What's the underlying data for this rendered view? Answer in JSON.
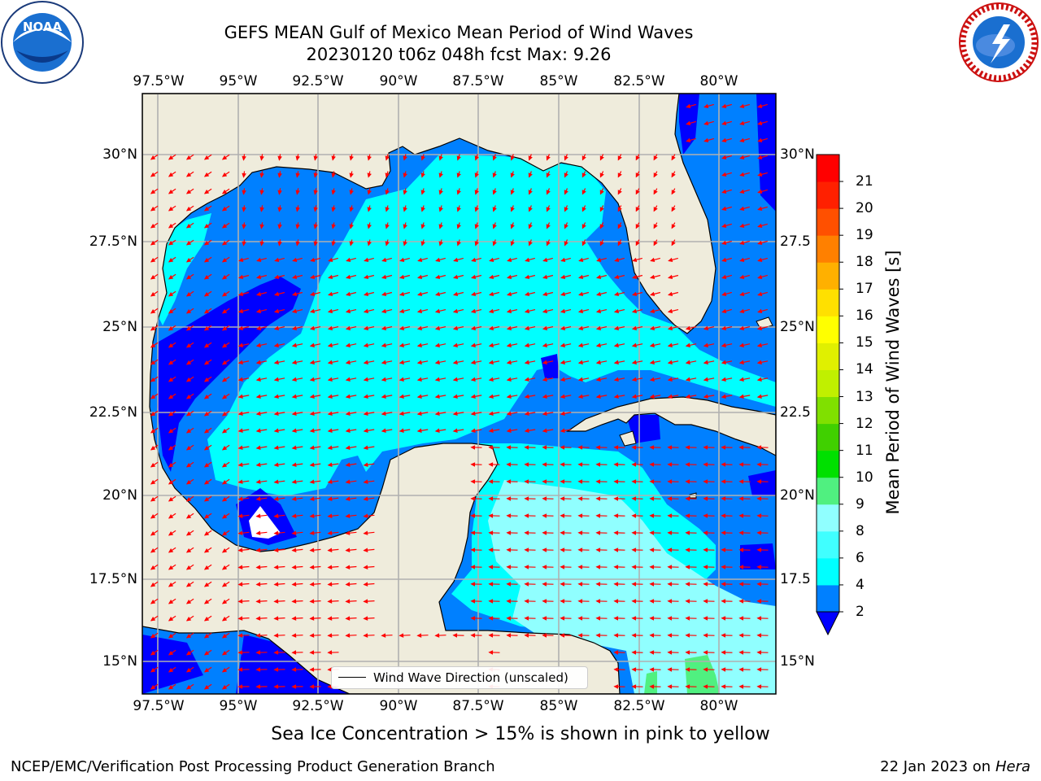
{
  "title": {
    "line1": "GEFS MEAN Gulf of Mexico Mean Period of Wind Waves",
    "line2": "20230120 t06z 048h fcst   Max: 9.26"
  },
  "lon_ticks": [
    "97.5°W",
    "95°W",
    "92.5°W",
    "90°W",
    "87.5°W",
    "85°W",
    "82.5°W",
    "80°W"
  ],
  "lat_ticks_left": [
    "30°N",
    "27.5°N",
    "25°N",
    "22.5°N",
    "20°N",
    "17.5°N",
    "15°N"
  ],
  "lat_ticks_right": [
    "30°N",
    "27.5",
    "25°N",
    "22.5",
    "20°N",
    "17.5",
    "15°N"
  ],
  "colorbar": {
    "title": "Mean Period of Wind Waves [s]",
    "ticks": [
      "2",
      "4",
      "6",
      "8",
      "9",
      "10",
      "11",
      "12",
      "13",
      "14",
      "15",
      "16",
      "17",
      "18",
      "19",
      "20",
      "21"
    ],
    "colors": [
      "#0080ff",
      "#00ffff",
      "#40ffff",
      "#90ffff",
      "#50f080",
      "#00e000",
      "#40d000",
      "#80e000",
      "#c0f000",
      "#e0f000",
      "#ffff00",
      "#ffe000",
      "#ffb000",
      "#ff8000",
      "#ff5000",
      "#ff2000",
      "#ff0000"
    ],
    "extend_color": "#0000ff"
  },
  "legend": {
    "label": "Wind Wave Direction (unscaled)"
  },
  "ice_note": "Sea Ice Concentration > 15% is shown in pink to yellow",
  "footer": {
    "left": "NCEP/EMC/Verification Post Processing Product Generation Branch",
    "date": "22 Jan 2023 on ",
    "machine": "Hera"
  },
  "logos": {
    "left": "NOAA",
    "right": "NATIONAL WEATHER SERVICE"
  },
  "map_colors": {
    "land": "#efecdc",
    "band_2_4": "#0080ff",
    "band_below_2": "#0000ff",
    "band_4_6": "#00ffff",
    "band_8_9": "#90ffff",
    "band_9_10": "#50f080",
    "arrows": "#ff0000",
    "grid": "#b0b0b0"
  }
}
